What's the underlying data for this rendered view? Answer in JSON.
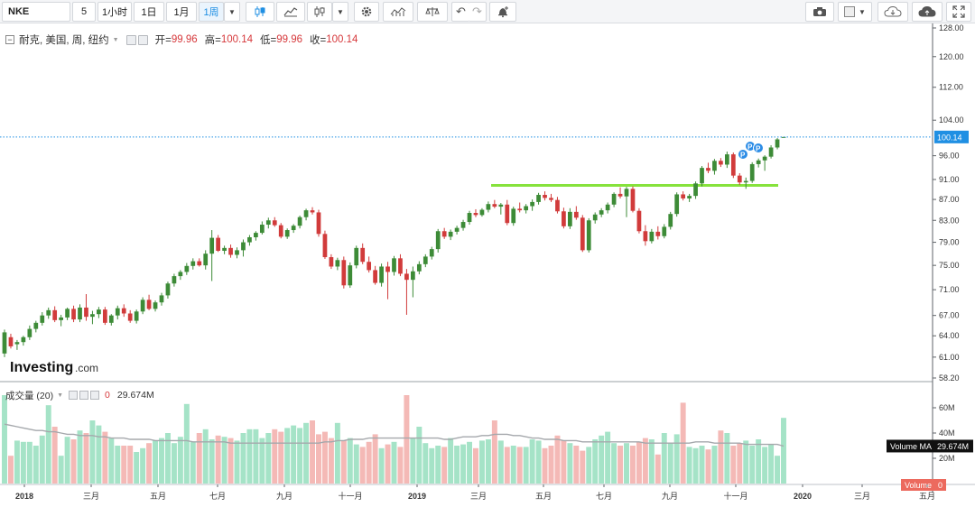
{
  "toolbar": {
    "symbol": "NKE",
    "interval_value": "5",
    "btn_1h": "1小时",
    "btn_1d": "1日",
    "btn_1m": "1月",
    "btn_1w": "1周"
  },
  "legend": {
    "title": "耐克, 美国, 周, 纽约",
    "open_label": "开=",
    "open_value": "99.96",
    "high_label": "高=",
    "high_value": "100.14",
    "low_label": "低=",
    "low_value": "99.96",
    "close_label": "收=",
    "close_value": "100.14"
  },
  "volume_legend": {
    "title": "成交量 (20)",
    "zero": "0",
    "value": "29.674M"
  },
  "price_axis": {
    "ticks": [
      "128.00",
      "120.00",
      "112.00",
      "104.00",
      "96.00",
      "91.00",
      "87.00",
      "83.00",
      "79.00",
      "75.00",
      "71.00",
      "67.00",
      "64.00",
      "61.00",
      "58.20"
    ],
    "last_price_tag": "100.14"
  },
  "volume_axis": {
    "ticks": [
      "60M",
      "40M",
      "20M"
    ],
    "ma_label": "Volume MA",
    "ma_value": "29.674M",
    "vol_label": "Volume",
    "vol_value": "0"
  },
  "time_axis": {
    "labels": [
      "2018",
      "三月",
      "五月",
      "七月",
      "九月",
      "十一月",
      "2019",
      "三月",
      "五月",
      "七月",
      "九月",
      "十一月",
      "2020",
      "三月",
      "五月"
    ]
  },
  "watermark": {
    "brand": "Investing",
    "suffix": ".com"
  },
  "colors": {
    "up": "#3d8b37",
    "down": "#d13b3b",
    "vol_up": "#a5e3c7",
    "vol_down": "#f4b9b6",
    "support_line": "#86e23c",
    "last_price": "#1f8fe3"
  },
  "icons": [
    "candles-icon",
    "area-chart-icon",
    "bars-icon",
    "settings-gear-icon",
    "indicators-icon",
    "compare-scale-icon",
    "undo-icon",
    "redo-icon",
    "alert-bell-icon",
    "camera-icon",
    "color-box-icon",
    "cloud-load-icon",
    "cloud-save-icon",
    "fullscreen-icon"
  ],
  "chart_data": {
    "type": "candlestick",
    "title": "耐克, 美国, 周, 纽约",
    "x_start_week": "2017-12-04",
    "candles": [
      [
        61.5,
        64.9,
        61.0,
        64.5
      ],
      [
        63.8,
        64.3,
        62.2,
        62.5
      ],
      [
        62.8,
        63.4,
        62.0,
        63.1
      ],
      [
        63.1,
        64.0,
        62.6,
        63.8
      ],
      [
        63.8,
        65.5,
        63.4,
        65.0
      ],
      [
        65.0,
        66.2,
        64.5,
        65.9
      ],
      [
        65.9,
        67.5,
        65.5,
        67.0
      ],
      [
        67.0,
        68.2,
        66.5,
        67.8
      ],
      [
        67.8,
        68.4,
        66.0,
        66.3
      ],
      [
        66.3,
        67.1,
        65.4,
        66.7
      ],
      [
        66.7,
        68.2,
        66.3,
        68.0
      ],
      [
        68.0,
        68.5,
        66.0,
        66.4
      ],
      [
        66.4,
        68.7,
        66.0,
        68.2
      ],
      [
        68.2,
        70.3,
        66.2,
        66.8
      ],
      [
        66.8,
        67.7,
        65.7,
        67.2
      ],
      [
        67.2,
        68.3,
        66.6,
        67.9
      ],
      [
        67.9,
        68.3,
        65.6,
        65.9
      ],
      [
        65.9,
        67.2,
        65.5,
        67.0
      ],
      [
        67.0,
        68.5,
        66.4,
        68.1
      ],
      [
        68.1,
        68.7,
        66.8,
        67.3
      ],
      [
        67.3,
        67.8,
        65.9,
        66.2
      ],
      [
        66.2,
        67.9,
        65.8,
        67.6
      ],
      [
        67.6,
        69.8,
        67.2,
        69.4
      ],
      [
        69.4,
        70.2,
        67.8,
        68.0
      ],
      [
        68.0,
        69.3,
        67.6,
        69.0
      ],
      [
        69.0,
        70.5,
        68.5,
        70.1
      ],
      [
        70.1,
        72.3,
        69.6,
        72.0
      ],
      [
        72.0,
        73.6,
        71.5,
        73.2
      ],
      [
        73.2,
        74.2,
        72.6,
        73.9
      ],
      [
        73.9,
        75.4,
        73.4,
        74.9
      ],
      [
        74.9,
        76.2,
        74.3,
        75.7
      ],
      [
        75.7,
        76.2,
        74.8,
        75.0
      ],
      [
        75.0,
        77.6,
        74.3,
        77.0
      ],
      [
        77.0,
        81.2,
        72.4,
        79.8
      ],
      [
        79.8,
        80.3,
        77.3,
        77.5
      ],
      [
        77.5,
        78.4,
        76.9,
        78.0
      ],
      [
        78.0,
        78.6,
        76.3,
        76.8
      ],
      [
        76.8,
        78.1,
        76.2,
        77.6
      ],
      [
        77.6,
        79.5,
        76.5,
        79.0
      ],
      [
        79.0,
        80.3,
        78.4,
        79.9
      ],
      [
        79.9,
        81.0,
        79.3,
        80.7
      ],
      [
        80.7,
        82.8,
        80.4,
        82.2
      ],
      [
        82.2,
        83.5,
        81.5,
        83.0
      ],
      [
        83.0,
        83.6,
        81.8,
        82.1
      ],
      [
        82.1,
        82.5,
        79.7,
        80.0
      ],
      [
        80.0,
        81.5,
        79.6,
        81.2
      ],
      [
        81.2,
        82.3,
        80.7,
        82.0
      ],
      [
        82.0,
        83.9,
        81.5,
        83.6
      ],
      [
        83.6,
        85.2,
        83.0,
        84.9
      ],
      [
        84.9,
        85.5,
        84.1,
        84.5
      ],
      [
        84.5,
        85.0,
        80.0,
        80.5
      ],
      [
        80.5,
        81.1,
        76.1,
        76.4
      ],
      [
        76.4,
        76.9,
        74.4,
        74.8
      ],
      [
        74.8,
        76.3,
        74.2,
        75.9
      ],
      [
        75.9,
        76.5,
        71.2,
        71.7
      ],
      [
        71.7,
        75.5,
        71.3,
        75.0
      ],
      [
        75.0,
        78.4,
        74.5,
        78.0
      ],
      [
        78.0,
        78.8,
        75.2,
        75.6
      ],
      [
        75.6,
        76.5,
        73.8,
        74.2
      ],
      [
        74.2,
        74.9,
        71.8,
        72.1
      ],
      [
        72.1,
        75.3,
        71.5,
        74.8
      ],
      [
        74.8,
        75.6,
        69.5,
        73.9
      ],
      [
        73.9,
        76.6,
        73.3,
        76.2
      ],
      [
        76.2,
        76.9,
        73.2,
        73.6
      ],
      [
        73.6,
        74.4,
        67.1,
        72.6
      ],
      [
        72.6,
        74.8,
        69.8,
        74.0
      ],
      [
        74.0,
        75.7,
        73.5,
        75.2
      ],
      [
        75.2,
        76.9,
        74.7,
        76.5
      ],
      [
        76.5,
        78.2,
        76.0,
        77.8
      ],
      [
        77.8,
        81.4,
        77.2,
        81.0
      ],
      [
        81.0,
        81.6,
        79.6,
        80.0
      ],
      [
        80.0,
        81.3,
        79.4,
        80.9
      ],
      [
        80.9,
        82.0,
        80.4,
        81.6
      ],
      [
        81.6,
        83.1,
        81.1,
        82.7
      ],
      [
        82.7,
        84.8,
        82.2,
        84.4
      ],
      [
        84.4,
        85.1,
        83.6,
        84.0
      ],
      [
        84.0,
        85.3,
        83.7,
        85.0
      ],
      [
        85.0,
        86.6,
        84.5,
        86.1
      ],
      [
        86.1,
        86.9,
        85.3,
        85.6
      ],
      [
        85.6,
        86.3,
        84.1,
        86.0
      ],
      [
        86.0,
        86.9,
        82.1,
        82.5
      ],
      [
        82.5,
        85.6,
        82.0,
        85.2
      ],
      [
        85.2,
        86.4,
        84.5,
        84.9
      ],
      [
        84.9,
        86.1,
        84.3,
        85.7
      ],
      [
        85.7,
        87.0,
        84.8,
        86.5
      ],
      [
        86.5,
        88.3,
        86.0,
        87.9
      ],
      [
        87.9,
        88.6,
        86.8,
        87.3
      ],
      [
        87.3,
        88.1,
        86.5,
        86.9
      ],
      [
        86.9,
        87.5,
        84.3,
        84.7
      ],
      [
        84.7,
        85.4,
        81.5,
        81.9
      ],
      [
        81.9,
        85.3,
        81.4,
        84.6
      ],
      [
        84.6,
        85.7,
        83.1,
        83.5
      ],
      [
        83.5,
        84.0,
        77.3,
        77.6
      ],
      [
        77.6,
        83.4,
        77.2,
        83.0
      ],
      [
        83.0,
        84.5,
        82.4,
        84.1
      ],
      [
        84.1,
        85.3,
        83.6,
        84.9
      ],
      [
        84.9,
        86.4,
        84.3,
        86.0
      ],
      [
        86.0,
        88.4,
        85.5,
        88.1
      ],
      [
        88.1,
        89.4,
        87.2,
        87.6
      ],
      [
        87.6,
        89.5,
        83.6,
        89.1
      ],
      [
        89.1,
        89.6,
        84.5,
        84.8
      ],
      [
        84.8,
        85.3,
        80.6,
        81.0
      ],
      [
        81.0,
        82.1,
        78.4,
        79.2
      ],
      [
        79.2,
        81.4,
        78.8,
        80.9
      ],
      [
        80.9,
        81.9,
        79.5,
        80.1
      ],
      [
        80.1,
        82.3,
        79.7,
        81.8
      ],
      [
        81.8,
        84.6,
        81.3,
        84.2
      ],
      [
        84.2,
        88.4,
        83.7,
        88.0
      ],
      [
        88.0,
        88.6,
        86.8,
        87.2
      ],
      [
        87.2,
        88.1,
        86.5,
        87.7
      ],
      [
        87.7,
        90.6,
        87.1,
        90.2
      ],
      [
        90.2,
        93.8,
        89.6,
        93.4
      ],
      [
        93.4,
        94.5,
        92.3,
        92.8
      ],
      [
        92.8,
        95.3,
        92.0,
        94.9
      ],
      [
        94.9,
        95.5,
        93.6,
        94.1
      ],
      [
        94.1,
        96.9,
        93.4,
        96.3
      ],
      [
        96.3,
        96.7,
        91.3,
        91.8
      ],
      [
        91.8,
        92.3,
        89.9,
        90.4
      ],
      [
        90.4,
        91.4,
        89.1,
        90.7
      ],
      [
        90.7,
        94.6,
        90.3,
        94.2
      ],
      [
        94.2,
        95.4,
        93.5,
        95.0
      ],
      [
        95.0,
        96.1,
        92.8,
        95.8
      ],
      [
        95.8,
        98.3,
        95.4,
        97.8
      ],
      [
        97.8,
        99.9,
        97.4,
        99.6
      ],
      [
        99.96,
        100.14,
        99.96,
        100.14
      ]
    ],
    "support_level": 89.8,
    "y_scale": "log",
    "y_ticks": [
      128,
      120,
      112,
      104,
      96,
      91,
      87,
      83,
      79,
      75,
      71,
      67,
      64,
      61,
      58.2
    ],
    "ylim": [
      58.2,
      130
    ],
    "volume": {
      "values_M": [
        70,
        22,
        34,
        33,
        33,
        30,
        38,
        62,
        45,
        22,
        37,
        35,
        42,
        40,
        50,
        46,
        41,
        36,
        30,
        30,
        30,
        25,
        28,
        32,
        34,
        36,
        40,
        32,
        37,
        63,
        33,
        40,
        43,
        35,
        38,
        37,
        36,
        34,
        40,
        43,
        43,
        36,
        40,
        43,
        41,
        44,
        46,
        44,
        48,
        50,
        39,
        41,
        36,
        48,
        34,
        36,
        31,
        29,
        33,
        39,
        28,
        31,
        33,
        29,
        70,
        36,
        45,
        32,
        28,
        30,
        29,
        36,
        30,
        31,
        33,
        28,
        34,
        35,
        50,
        34,
        29,
        30,
        29,
        29,
        35,
        34,
        28,
        30,
        38,
        34,
        32,
        30,
        26,
        29,
        35,
        38,
        41,
        32,
        30,
        32,
        30,
        33,
        36,
        35,
        23,
        40,
        32,
        39,
        64,
        29,
        28,
        30,
        27,
        30,
        42,
        40,
        30,
        32,
        34,
        30,
        35,
        29,
        31,
        22,
        52
      ],
      "ma_M": [
        47,
        46,
        45,
        44,
        43,
        42,
        42,
        41,
        41,
        40,
        39,
        39,
        38,
        38,
        38,
        37,
        37,
        36,
        36,
        36,
        35,
        35,
        35,
        35,
        34,
        34,
        34,
        34,
        34,
        34,
        33,
        33,
        33,
        33,
        33,
        33,
        32,
        32,
        32,
        32,
        32,
        32,
        32,
        32,
        32,
        32,
        32,
        32,
        32,
        32,
        32,
        33,
        33,
        34,
        34,
        35,
        35,
        35,
        36,
        36,
        36,
        36,
        36,
        36,
        36,
        36,
        36,
        36,
        36,
        36,
        35,
        35,
        36,
        37,
        37,
        37,
        38,
        38,
        39,
        39,
        39,
        38,
        38,
        37,
        36,
        36,
        35,
        35,
        35,
        34,
        34,
        34,
        33,
        33,
        33,
        33,
        33,
        33,
        33,
        33,
        33,
        33,
        32,
        32,
        32,
        32,
        32,
        32,
        32,
        32,
        33,
        33,
        33,
        32,
        32,
        32,
        32,
        32,
        31,
        31,
        31,
        31,
        31,
        31,
        29.674
      ],
      "y_ticks": [
        "60M",
        "40M",
        "20M"
      ]
    },
    "x_tick_labels": [
      "2018",
      "三月",
      "五月",
      "七月",
      "九月",
      "十一月",
      "2019",
      "三月",
      "五月",
      "七月",
      "九月",
      "十一月",
      "2020",
      "三月",
      "五月"
    ]
  }
}
